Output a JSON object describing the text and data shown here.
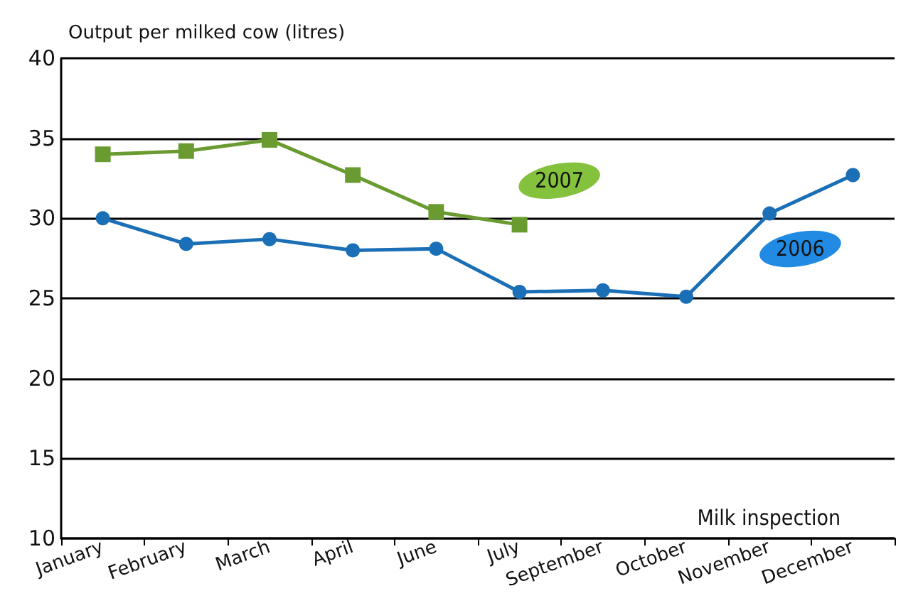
{
  "chart_data": {
    "type": "line",
    "ylabel": "Output per milked cow (litres)",
    "categories": [
      "January",
      "February",
      "March",
      "April",
      "June",
      "July",
      "September",
      "October",
      "November",
      "December"
    ],
    "series": [
      {
        "name": "2006",
        "color": "#1b6fb6",
        "marker": "circle",
        "values": [
          30.0,
          28.4,
          28.7,
          28.0,
          28.1,
          25.4,
          25.5,
          25.1,
          30.3,
          32.7
        ]
      },
      {
        "name": "2007",
        "color": "#6a9b30",
        "marker": "square",
        "values": [
          34.0,
          34.2,
          34.9,
          32.7,
          30.4,
          29.6,
          null,
          null,
          null,
          null
        ]
      }
    ],
    "annotations": [
      "Milk inspection"
    ],
    "ylim": [
      10,
      40
    ],
    "yticks": [
      10,
      15,
      20,
      25,
      30,
      35,
      40
    ],
    "grid": "y",
    "legend": false,
    "line_style": "solid"
  }
}
